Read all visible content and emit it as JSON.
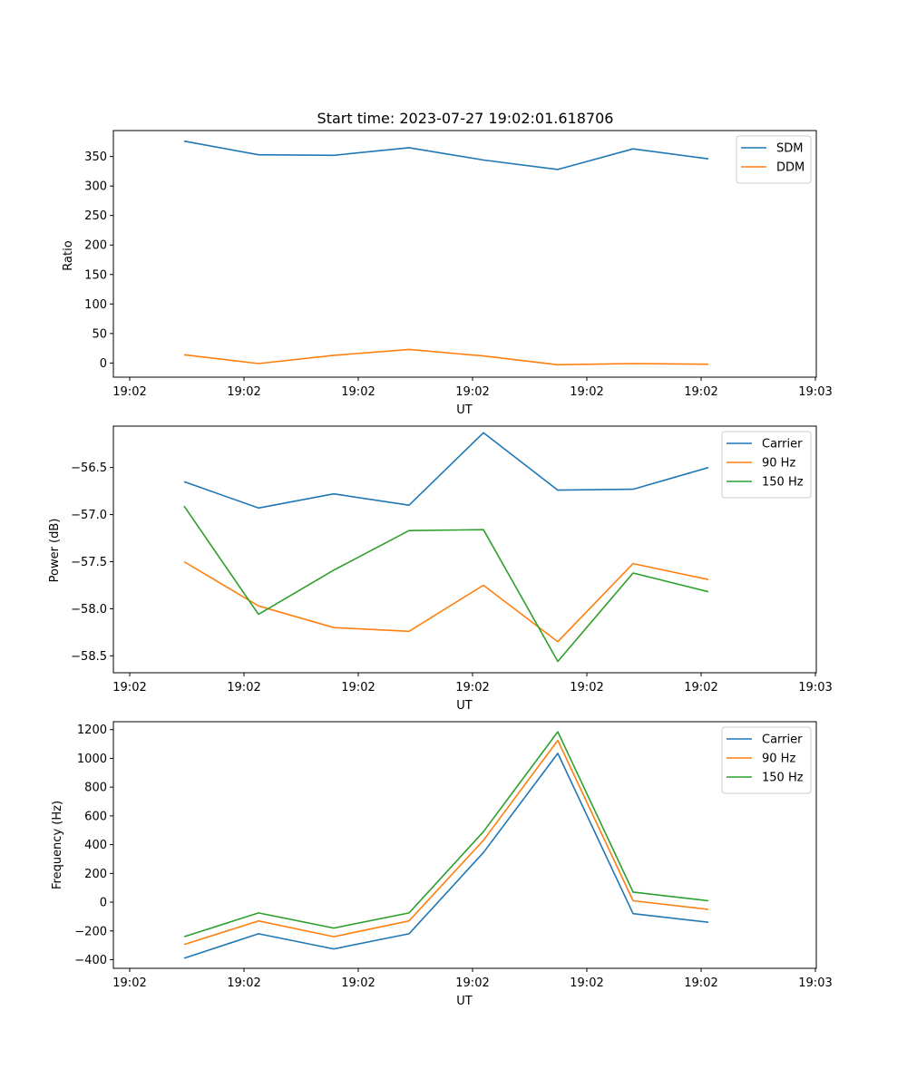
{
  "chart_data": [
    {
      "type": "line",
      "title": "Start time: 2023-07-27 19:02:01.618706",
      "xlabel": "UT",
      "ylabel": "Ratio",
      "x_tick_labels": [
        "19:02",
        "19:02",
        "19:02",
        "19:02",
        "19:02",
        "19:02",
        "19:03"
      ],
      "y_ticks": [
        0,
        50,
        100,
        150,
        200,
        250,
        300,
        350
      ],
      "ylim": [
        -24,
        394
      ],
      "legend_position": "top-right",
      "series": [
        {
          "name": "SDM",
          "color": "#1f77b4",
          "values": [
            376,
            353,
            352,
            365,
            344,
            328,
            363,
            346
          ]
        },
        {
          "name": "DDM",
          "color": "#ff7f0e",
          "values": [
            14,
            -1,
            13,
            23,
            12,
            -3,
            -1,
            -2
          ]
        }
      ]
    },
    {
      "type": "line",
      "title": "",
      "xlabel": "UT",
      "ylabel": "Power (dB)",
      "x_tick_labels": [
        "19:02",
        "19:02",
        "19:02",
        "19:02",
        "19:02",
        "19:02",
        "19:03"
      ],
      "y_ticks": [
        -56.5,
        -57.0,
        -57.5,
        -58.0,
        -58.5
      ],
      "y_tick_labels": [
        "−56.5",
        "−57.0",
        "−57.5",
        "−58.0",
        "−58.5"
      ],
      "ylim": [
        -58.68,
        -56.06
      ],
      "legend_position": "top-right",
      "series": [
        {
          "name": "Carrier",
          "color": "#1f77b4",
          "values": [
            -56.65,
            -56.93,
            -56.78,
            -56.9,
            -56.13,
            -56.74,
            -56.73,
            -56.5
          ]
        },
        {
          "name": "90 Hz",
          "color": "#ff7f0e",
          "values": [
            -57.5,
            -57.97,
            -58.2,
            -58.24,
            -57.75,
            -58.35,
            -57.52,
            -57.69
          ]
        },
        {
          "name": "150 Hz",
          "color": "#2ca02c",
          "values": [
            -56.91,
            -58.06,
            -57.59,
            -57.17,
            -57.16,
            -58.56,
            -57.62,
            -57.82
          ]
        }
      ]
    },
    {
      "type": "line",
      "title": "",
      "xlabel": "UT",
      "ylabel": "Frequency (Hz)",
      "x_tick_labels": [
        "19:02",
        "19:02",
        "19:02",
        "19:02",
        "19:02",
        "19:02",
        "19:03"
      ],
      "y_ticks": [
        -400,
        -200,
        0,
        200,
        400,
        600,
        800,
        1000,
        1200
      ],
      "y_tick_labels": [
        "−400",
        "−200",
        "0",
        "200",
        "400",
        "600",
        "800",
        "1000",
        "1200"
      ],
      "ylim": [
        -460,
        1255
      ],
      "legend_position": "top-right",
      "series": [
        {
          "name": "Carrier",
          "color": "#1f77b4",
          "values": [
            -390,
            -220,
            -325,
            -220,
            345,
            1035,
            -80,
            -140
          ]
        },
        {
          "name": "90 Hz",
          "color": "#ff7f0e",
          "values": [
            -295,
            -130,
            -240,
            -130,
            430,
            1125,
            10,
            -50
          ]
        },
        {
          "name": "150 Hz",
          "color": "#2ca02c",
          "values": [
            -240,
            -75,
            -180,
            -75,
            490,
            1185,
            70,
            10
          ]
        }
      ]
    }
  ]
}
